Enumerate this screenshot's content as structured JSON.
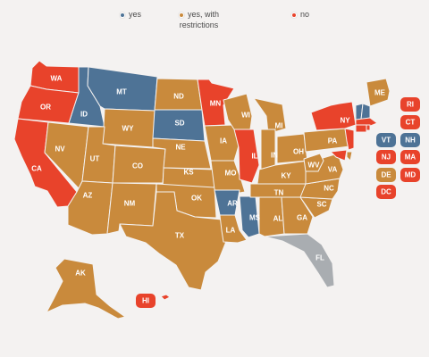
{
  "colors": {
    "yes": "#4e7396",
    "restrict": "#c98a3c",
    "no": "#e8432b",
    "none": "#a9adb1",
    "bg": "#f4f2f1"
  },
  "legend": {
    "yes": {
      "label": "yes"
    },
    "restrict": {
      "label_line1": "yes, with",
      "label_line2": "restrictions"
    },
    "no": {
      "label": "no"
    }
  },
  "states": [
    {
      "abbr": "WA",
      "status": "no"
    },
    {
      "abbr": "OR",
      "status": "no"
    },
    {
      "abbr": "CA",
      "status": "no"
    },
    {
      "abbr": "ID",
      "status": "yes"
    },
    {
      "abbr": "NV",
      "status": "restrict"
    },
    {
      "abbr": "MT",
      "status": "yes"
    },
    {
      "abbr": "WY",
      "status": "restrict"
    },
    {
      "abbr": "UT",
      "status": "restrict"
    },
    {
      "abbr": "AZ",
      "status": "restrict"
    },
    {
      "abbr": "CO",
      "status": "restrict"
    },
    {
      "abbr": "NM",
      "status": "restrict"
    },
    {
      "abbr": "ND",
      "status": "restrict"
    },
    {
      "abbr": "SD",
      "status": "yes"
    },
    {
      "abbr": "NE",
      "status": "restrict"
    },
    {
      "abbr": "KS",
      "status": "restrict"
    },
    {
      "abbr": "OK",
      "status": "restrict"
    },
    {
      "abbr": "TX",
      "status": "restrict"
    },
    {
      "abbr": "MN",
      "status": "no"
    },
    {
      "abbr": "IA",
      "status": "restrict"
    },
    {
      "abbr": "MO",
      "status": "restrict"
    },
    {
      "abbr": "AR",
      "status": "yes"
    },
    {
      "abbr": "LA",
      "status": "restrict"
    },
    {
      "abbr": "WI",
      "status": "restrict"
    },
    {
      "abbr": "IL",
      "status": "no"
    },
    {
      "abbr": "MS",
      "status": "yes"
    },
    {
      "abbr": "MI",
      "status": "restrict"
    },
    {
      "abbr": "IN",
      "status": "restrict"
    },
    {
      "abbr": "KY",
      "status": "restrict"
    },
    {
      "abbr": "TN",
      "status": "restrict"
    },
    {
      "abbr": "AL",
      "status": "restrict"
    },
    {
      "abbr": "OH",
      "status": "restrict"
    },
    {
      "abbr": "GA",
      "status": "restrict"
    },
    {
      "abbr": "FL",
      "status": "none"
    },
    {
      "abbr": "SC",
      "status": "restrict"
    },
    {
      "abbr": "NC",
      "status": "restrict"
    },
    {
      "abbr": "VA",
      "status": "restrict"
    },
    {
      "abbr": "WV",
      "status": "restrict"
    },
    {
      "abbr": "PA",
      "status": "restrict"
    },
    {
      "abbr": "NY",
      "status": "no"
    },
    {
      "abbr": "ME",
      "status": "restrict"
    },
    {
      "abbr": "AK",
      "status": "restrict"
    },
    {
      "abbr": "HI",
      "status": "no"
    },
    {
      "abbr": "VT",
      "status": "yes"
    },
    {
      "abbr": "NH",
      "status": "yes"
    },
    {
      "abbr": "MA",
      "status": "no"
    },
    {
      "abbr": "RI",
      "status": "no"
    },
    {
      "abbr": "CT",
      "status": "no"
    },
    {
      "abbr": "NJ",
      "status": "no"
    },
    {
      "abbr": "DE",
      "status": "restrict"
    },
    {
      "abbr": "MD",
      "status": "no"
    },
    {
      "abbr": "DC",
      "status": "no"
    }
  ]
}
